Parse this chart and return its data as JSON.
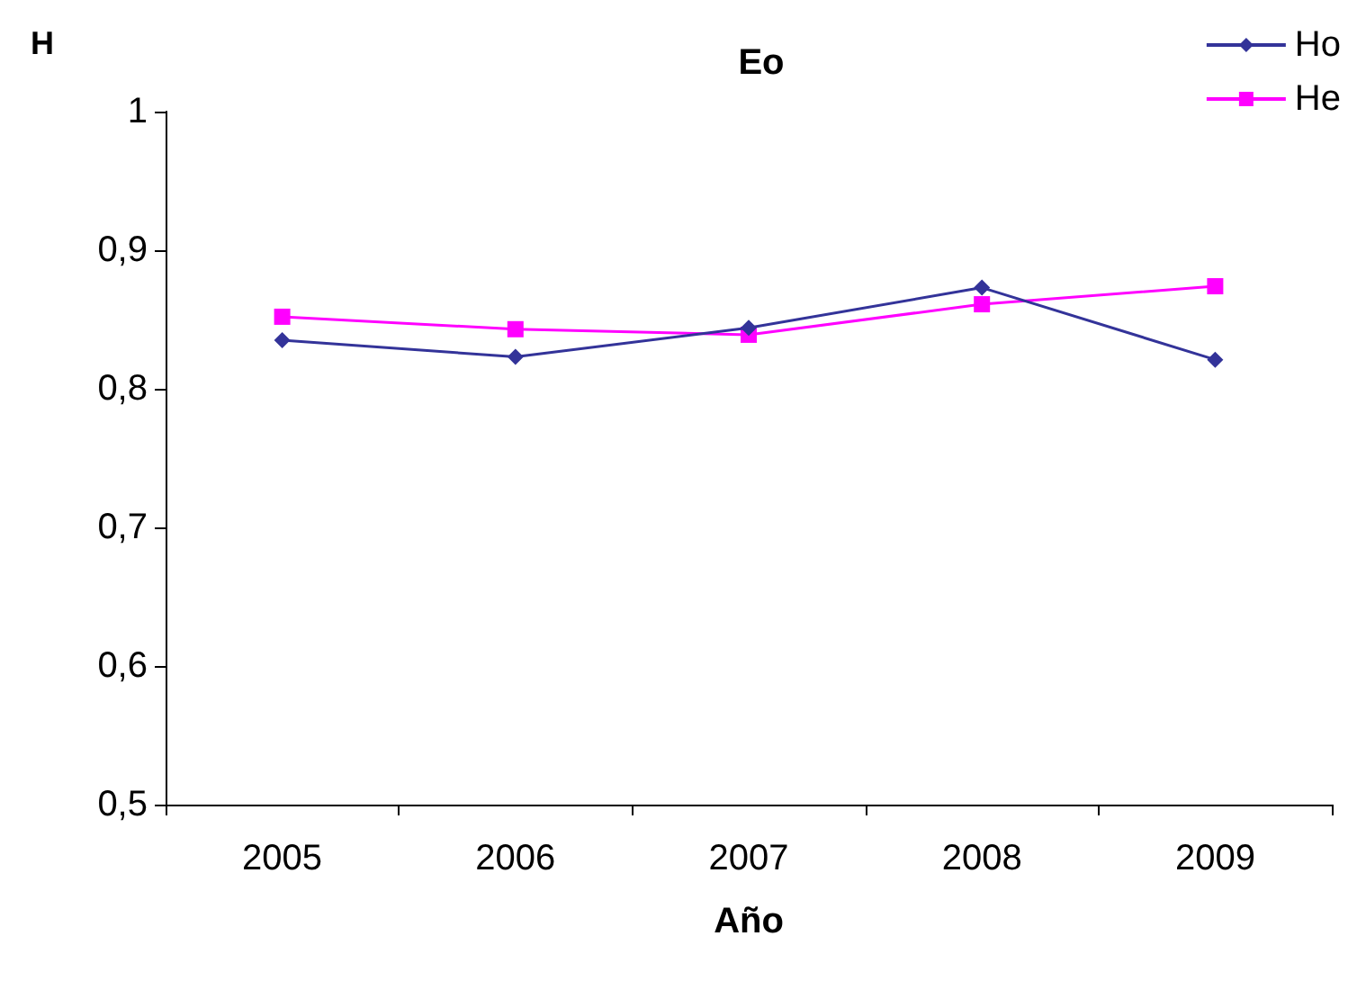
{
  "chart_data": {
    "type": "line",
    "title": "Eo",
    "xlabel": "Año",
    "ylabel": "H",
    "categories": [
      "2005",
      "2006",
      "2007",
      "2008",
      "2009"
    ],
    "series": [
      {
        "name": "Ho",
        "color": "#333399",
        "marker": "diamond",
        "values": [
          0.835,
          0.823,
          0.844,
          0.873,
          0.821
        ]
      },
      {
        "name": "He",
        "color": "#ff00ff",
        "marker": "square",
        "values": [
          0.852,
          0.843,
          0.839,
          0.861,
          0.874
        ]
      }
    ],
    "ylim": [
      0.5,
      1
    ],
    "yticks": [
      {
        "value": 0.5,
        "label": "0,5"
      },
      {
        "value": 0.6,
        "label": "0,6"
      },
      {
        "value": 0.7,
        "label": "0,7"
      },
      {
        "value": 0.8,
        "label": "0,8"
      },
      {
        "value": 0.9,
        "label": "0,9"
      },
      1
    ],
    "grid": false,
    "legend": "top right",
    "line_style": "solid"
  }
}
